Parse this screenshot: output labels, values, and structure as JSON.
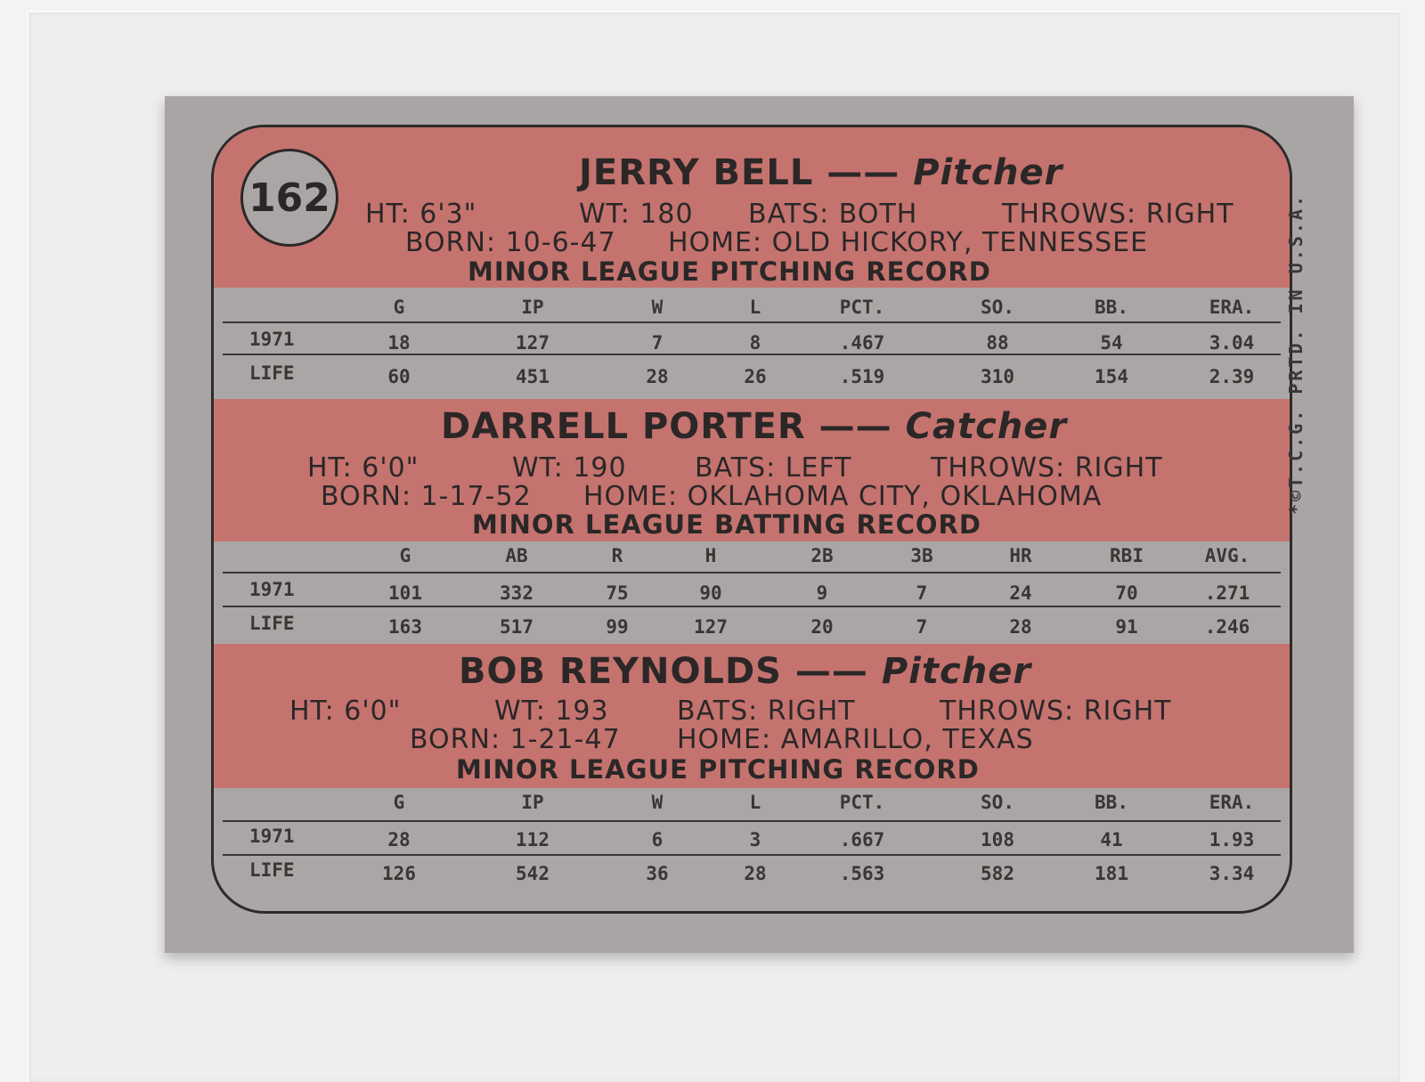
{
  "card_number": "162",
  "colors": {
    "header_red": "#c5736f",
    "card_gray": "#a9a5a4",
    "ink": "#2b2727"
  },
  "players": [
    {
      "name": "JERRY BELL",
      "dash": "——",
      "position": "Pitcher",
      "ht": "HT: 6'3\"",
      "wt": "WT: 180",
      "bats": "BATS: BOTH",
      "throws": "THROWS: RIGHT",
      "born": "BORN: 10-6-47",
      "home": "HOME: OLD HICKORY, TENNESSEE",
      "record_title": "MINOR LEAGUE PITCHING RECORD",
      "columns": [
        "G",
        "IP",
        "W",
        "L",
        "PCT.",
        "SO.",
        "BB.",
        "ERA."
      ],
      "rows": [
        {
          "label": "1971",
          "values": [
            "18",
            "127",
            "7",
            "8",
            ".467",
            "88",
            "54",
            "3.04"
          ]
        },
        {
          "label": "LIFE",
          "values": [
            "60",
            "451",
            "28",
            "26",
            ".519",
            "310",
            "154",
            "2.39"
          ]
        }
      ]
    },
    {
      "name": "DARRELL PORTER",
      "dash": "——",
      "position": "Catcher",
      "ht": "HT: 6'0\"",
      "wt": "WT: 190",
      "bats": "BATS: LEFT",
      "throws": "THROWS: RIGHT",
      "born": "BORN: 1-17-52",
      "home": "HOME: OKLAHOMA CITY, OKLAHOMA",
      "record_title": "MINOR LEAGUE BATTING RECORD",
      "columns": [
        "G",
        "AB",
        "R",
        "H",
        "2B",
        "3B",
        "HR",
        "RBI",
        "AVG."
      ],
      "rows": [
        {
          "label": "1971",
          "values": [
            "101",
            "332",
            "75",
            "90",
            "9",
            "7",
            "24",
            "70",
            ".271"
          ]
        },
        {
          "label": "LIFE",
          "values": [
            "163",
            "517",
            "99",
            "127",
            "20",
            "7",
            "28",
            "91",
            ".246"
          ]
        }
      ]
    },
    {
      "name": "BOB REYNOLDS",
      "dash": "——",
      "position": "Pitcher",
      "ht": "HT: 6'0\"",
      "wt": "WT: 193",
      "bats": "BATS: RIGHT",
      "throws": "THROWS: RIGHT",
      "born": "BORN: 1-21-47",
      "home": "HOME: AMARILLO, TEXAS",
      "record_title": "MINOR LEAGUE PITCHING RECORD",
      "columns": [
        "G",
        "IP",
        "W",
        "L",
        "PCT.",
        "SO.",
        "BB.",
        "ERA."
      ],
      "rows": [
        {
          "label": "1971",
          "values": [
            "28",
            "112",
            "6",
            "3",
            ".667",
            "108",
            "41",
            "1.93"
          ]
        },
        {
          "label": "LIFE",
          "values": [
            "126",
            "542",
            "36",
            "28",
            ".563",
            "582",
            "181",
            "3.34"
          ]
        }
      ]
    }
  ],
  "side_text": "*©T.C.G. PRTD. IN U.S.A."
}
